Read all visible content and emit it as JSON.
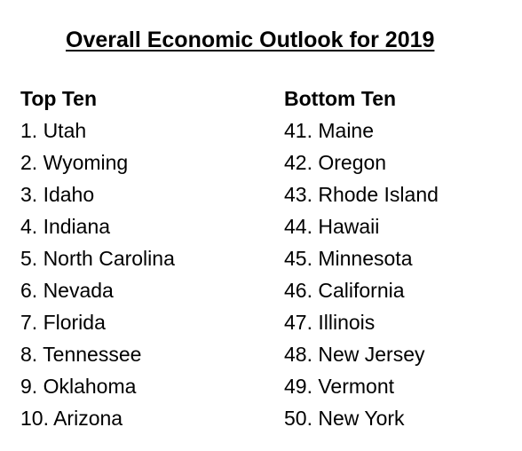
{
  "title": "Overall Economic Outlook for 2019",
  "top_ten": {
    "heading": "Top Ten",
    "items": [
      "1. Utah",
      "2. Wyoming",
      "3. Idaho",
      "4. Indiana",
      "5. North Carolina",
      "6. Nevada",
      "7. Florida",
      "8. Tennessee",
      "9. Oklahoma",
      "10. Arizona"
    ]
  },
  "bottom_ten": {
    "heading": "Bottom Ten",
    "items": [
      "41. Maine",
      "42. Oregon",
      "43. Rhode Island",
      "44. Hawaii",
      "45. Minnesota",
      "46. California",
      "47. Illinois",
      "48. New Jersey",
      "49. Vermont",
      "50. New York"
    ]
  }
}
